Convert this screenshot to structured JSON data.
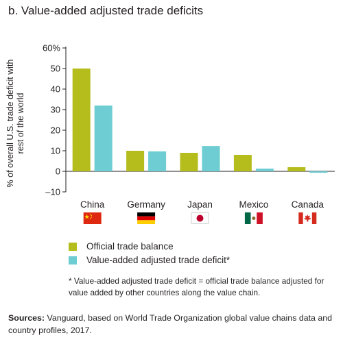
{
  "title": "b. Value-added adjusted trade deficits",
  "ylabel": "% of overall U.S. trade deficit with rest of the world",
  "legend": [
    {
      "label": "Official trade balance",
      "color": "#b5bd1c"
    },
    {
      "label": "Value-added adjusted trade deficit*",
      "color": "#6dcdd3"
    }
  ],
  "note": "* Value-added adjusted trade deficit = official trade balance adjusted for value added by other countries along the value chain.",
  "sources_label": "Sources:",
  "sources_text": " Vanguard, based on World Trade Organization global value chains data and country profiles, 2017.",
  "chart_data": {
    "type": "bar",
    "categories": [
      "China",
      "Germany",
      "Japan",
      "Mexico",
      "Canada"
    ],
    "flag_icons": [
      "china-flag-icon",
      "germany-flag-icon",
      "japan-flag-icon",
      "mexico-flag-icon",
      "canada-flag-icon"
    ],
    "series": [
      {
        "name": "Official trade balance",
        "color": "#b5bd1c",
        "values": [
          50,
          10,
          9,
          8,
          2
        ]
      },
      {
        "name": "Value-added adjusted trade deficit*",
        "color": "#6dcdd3",
        "values": [
          32,
          9.7,
          12.3,
          1.3,
          -0.7
        ]
      }
    ],
    "ylim": [
      -10,
      60
    ],
    "yticks": [
      -10,
      0,
      10,
      20,
      30,
      40,
      50,
      60
    ],
    "ytick_labels": [
      "–10",
      "0",
      "10",
      "20",
      "30",
      "40",
      "50",
      "60%"
    ],
    "grid": false
  }
}
